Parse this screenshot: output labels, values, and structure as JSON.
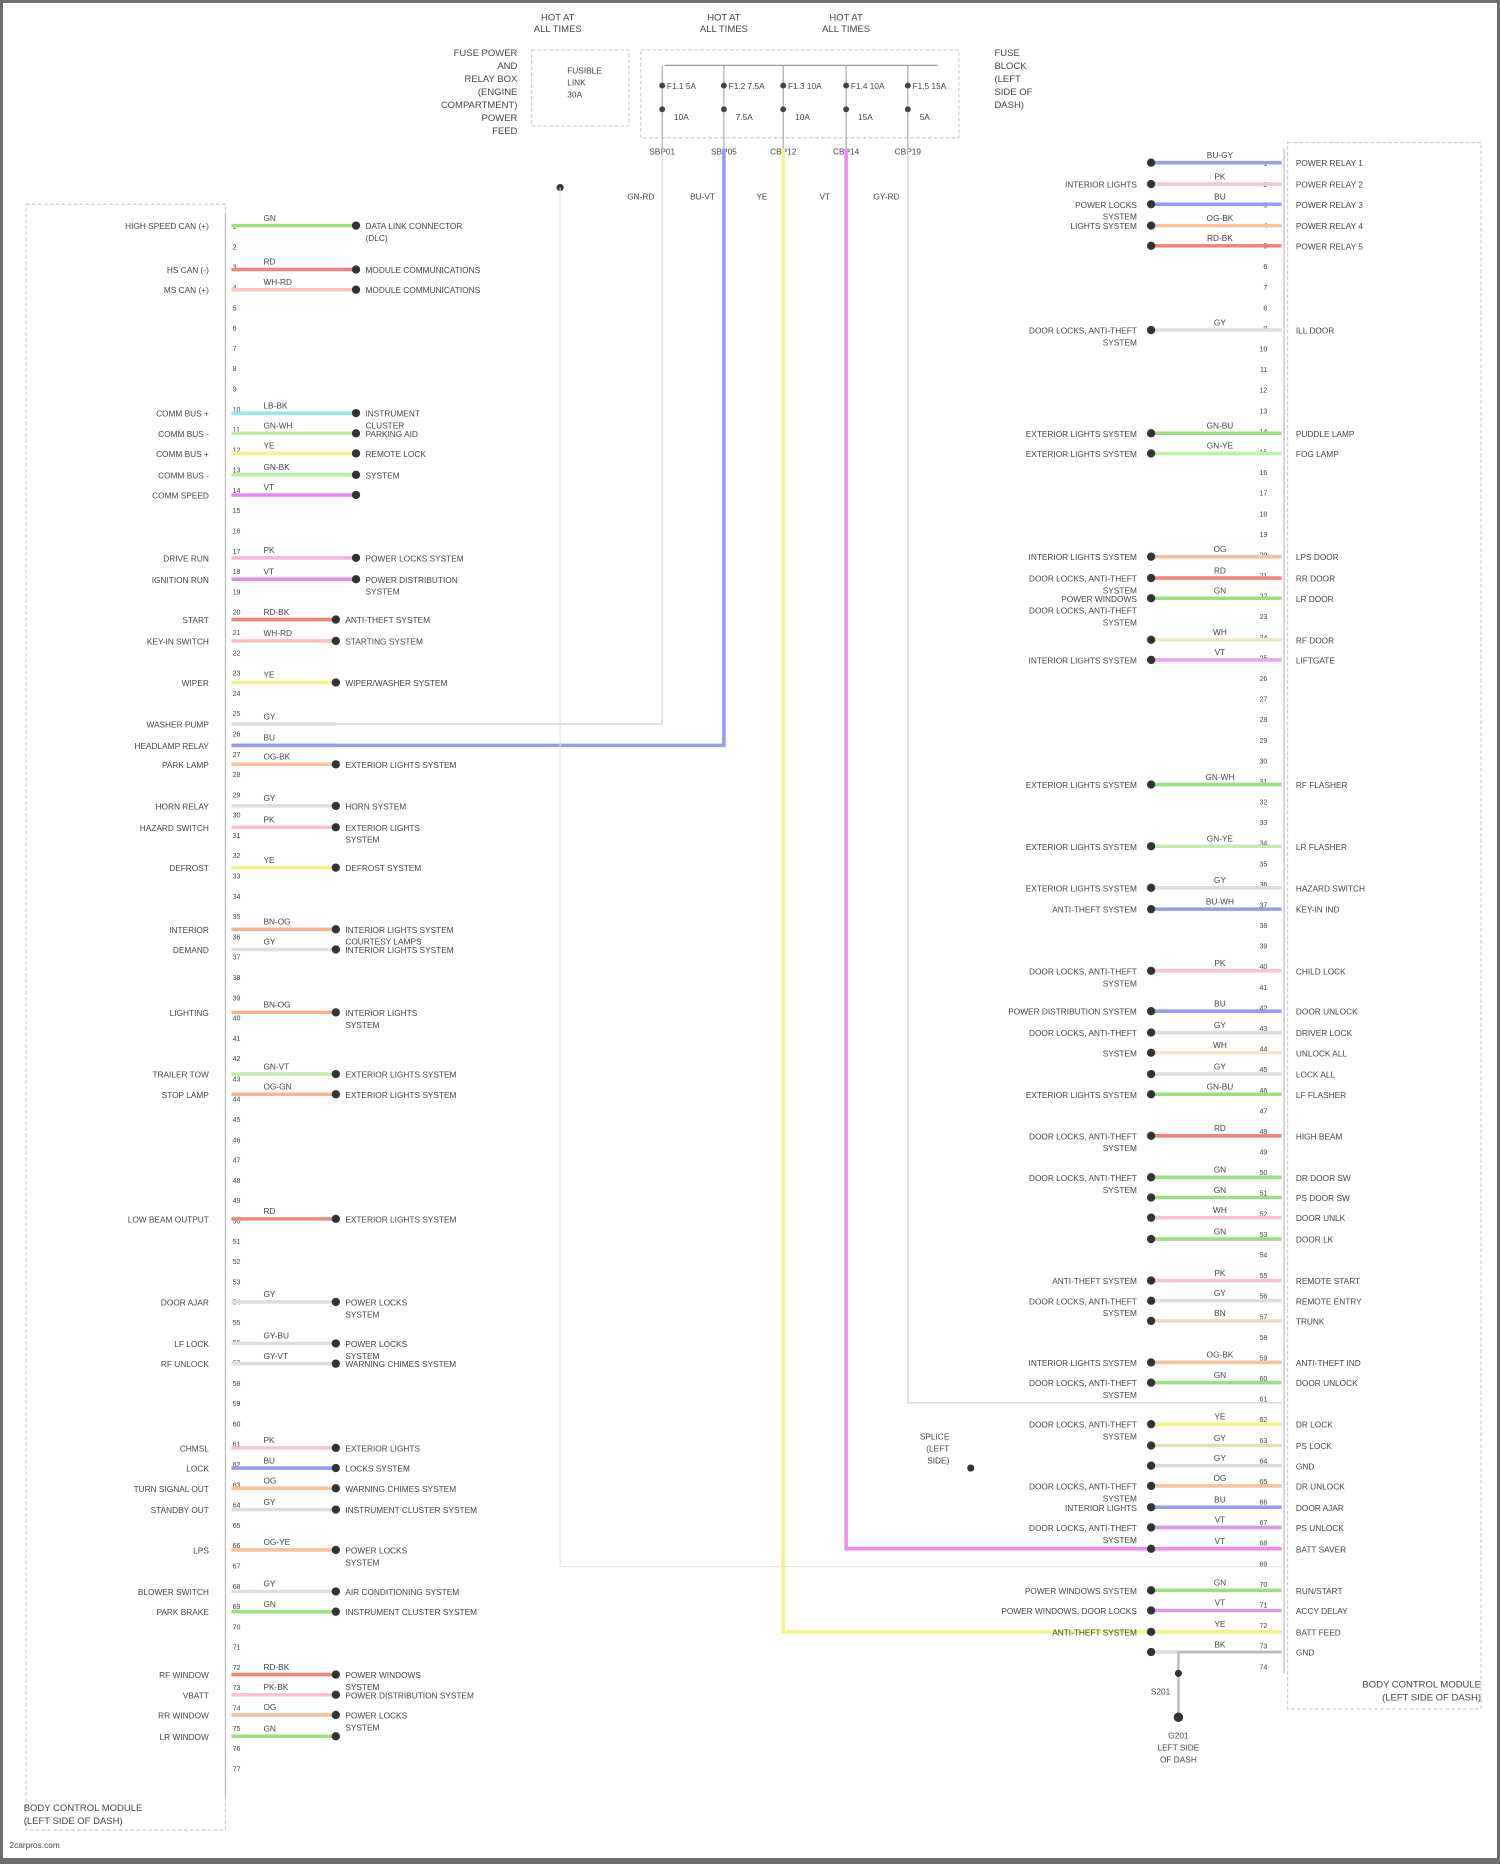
{
  "fuse_box": {
    "left_label": [
      "FUSE POWER",
      "AND",
      "RELAY BOX",
      "(ENGINE",
      "COMPARTMENT)",
      "POWER",
      "FEED"
    ],
    "right_label": [
      "FUSE",
      "BLOCK",
      "(LEFT",
      "SIDE OF",
      "DASH)"
    ],
    "hot_labels": [
      [
        "HOT AT",
        "ALL TIMES"
      ],
      [
        "HOT AT",
        "ALL TIMES"
      ],
      [
        "HOT AT",
        "ALL TIMES"
      ]
    ],
    "fuses": [
      "F1.1 5A",
      "F1.2 7.5A",
      "F1.3 10A",
      "F1.4 10A",
      "F1.5 15A"
    ],
    "fuse_amps": [
      "10A",
      "7.5A",
      "10A",
      "15A",
      "5A"
    ],
    "inline_fuse": [
      "FUSIBLE",
      "LINK",
      "30A"
    ],
    "wire_codes": [
      "SBP01",
      "SBP05",
      "CBP12",
      "CBP14",
      "CBP19"
    ],
    "wire_colors": [
      "GN-RD",
      "BU-VT",
      "YE",
      "VT",
      "GY-RD"
    ]
  },
  "left_module": {
    "title": [
      "BODY CONTROL MODULE",
      "(LEFT SIDE OF DASH)"
    ],
    "pin_count": 77,
    "wires": [
      {
        "pin": "1",
        "color": "GN",
        "hex": "#9be07f",
        "signal": "HIGH SPEED CAN (+)",
        "dest": [
          "DATA LINK CONNECTOR",
          "(DLC)"
        ]
      },
      {
        "pin": "3",
        "color": "RD",
        "hex": "#f4847a",
        "signal": "HS CAN (-)",
        "dest": [
          "MODULE COMMUNICATIONS"
        ]
      },
      {
        "pin": "4",
        "color": "WH-RD",
        "hex": "#f7c2c2",
        "signal": "MS CAN (+)",
        "dest": [
          "MODULE COMMUNICATIONS"
        ]
      },
      {
        "pin": "11",
        "color": "LB-BK",
        "hex": "#8fe8f2",
        "signal": "COMM BUS +",
        "dest": [
          "INSTRUMENT",
          "CLUSTER"
        ]
      },
      {
        "pin": "12",
        "color": "GN-WH",
        "hex": "#c5eca8",
        "signal": "COMM BUS -",
        "dest": [
          "PARKING AID"
        ]
      },
      {
        "pin": "13",
        "color": "YE",
        "hex": "#f3f38a",
        "signal": "COMM BUS +",
        "dest": [
          "REMOTE LOCK"
        ]
      },
      {
        "pin": "14",
        "color": "GN-BK",
        "hex": "#c5eca8",
        "signal": "COMM BUS -",
        "dest": [
          "SYSTEM"
        ]
      },
      {
        "pin": "15",
        "color": "VT",
        "hex": "#e58af0",
        "signal": "COMM SPEED",
        "dest": []
      },
      {
        "pin": "17",
        "color": "PK",
        "hex": "#f7b2d6",
        "signal": "DRIVE RUN",
        "dest": [
          "POWER LOCKS SYSTEM"
        ]
      },
      {
        "pin": "18",
        "color": "VT",
        "hex": "#e58af0",
        "signal": "IGNITION RUN",
        "dest": [
          "POWER DISTRIBUTION",
          "SYSTEM"
        ]
      },
      {
        "pin": "20",
        "color": "RD-BK",
        "hex": "#f4847a",
        "signal": "START",
        "dest": [
          "ANTI-THEFT SYSTEM"
        ]
      },
      {
        "pin": "21",
        "color": "WH-RD",
        "hex": "#f7c2c2",
        "signal": "KEY-IN SWITCH",
        "dest": [
          "STARTING SYSTEM"
        ]
      },
      {
        "pin": "23",
        "color": "YE",
        "hex": "#f3f38a",
        "signal": "WIPER",
        "dest": [
          "WIPER/WASHER SYSTEM"
        ]
      },
      {
        "pin": "25",
        "color": "GY",
        "hex": "#dddddd",
        "signal": "WASHER PUMP",
        "dest": []
      },
      {
        "pin": "26",
        "color": "BU",
        "hex": "#9a9af5",
        "signal": "HEADLAMP RELAY",
        "dest": []
      },
      {
        "pin": "27",
        "color": "OG-BK",
        "hex": "#f7c29a",
        "signal": "PARK LAMP",
        "dest": [
          "EXTERIOR LIGHTS SYSTEM"
        ]
      },
      {
        "pin": "29",
        "color": "GY",
        "hex": "#dddddd",
        "signal": "HORN RELAY",
        "dest": [
          "HORN SYSTEM"
        ]
      },
      {
        "pin": "30",
        "color": "PK",
        "hex": "#f7c2d6",
        "signal": "HAZARD SWITCH",
        "dest": [
          "EXTERIOR LIGHTS",
          "SYSTEM"
        ]
      },
      {
        "pin": "32",
        "color": "YE",
        "hex": "#f3f38a",
        "signal": "DEFROST",
        "dest": [
          "DEFROST SYSTEM"
        ]
      },
      {
        "pin": "35",
        "color": "BN-OG",
        "hex": "#f0b48e",
        "signal": "INTERIOR",
        "dest": [
          "INTERIOR LIGHTS SYSTEM",
          "COURTESY LAMPS"
        ]
      },
      {
        "pin": "36",
        "color": "GY",
        "hex": "#dddddd",
        "signal": "DEMAND",
        "dest": [
          "INTERIOR LIGHTS SYSTEM"
        ]
      },
      {
        "pin": "39",
        "color": "BN-OG",
        "hex": "#f0b48e",
        "signal": "LIGHTING",
        "dest": [
          "INTERIOR LIGHTS",
          "SYSTEM"
        ]
      },
      {
        "pin": "42",
        "color": "GN-VT",
        "hex": "#c5eca8",
        "signal": "TRAILER TOW",
        "dest": [
          "EXTERIOR LIGHTS SYSTEM"
        ]
      },
      {
        "pin": "43",
        "color": "OG-GN",
        "hex": "#f7b69a",
        "signal": "STOP LAMP",
        "dest": [
          "EXTERIOR LIGHTS SYSTEM"
        ]
      },
      {
        "pin": "49",
        "color": "RD",
        "hex": "#f4847a",
        "signal": "LOW BEAM OUTPUT",
        "dest": [
          "EXTERIOR LIGHTS SYSTEM"
        ]
      },
      {
        "pin": "53",
        "color": "GY",
        "hex": "#dddddd",
        "signal": "DOOR AJAR",
        "dest": [
          "POWER LOCKS",
          "SYSTEM"
        ]
      },
      {
        "pin": "55",
        "color": "GY-BU",
        "hex": "#dddddd",
        "signal": "LF LOCK",
        "dest": [
          "POWER LOCKS",
          "SYSTEM"
        ]
      },
      {
        "pin": "56",
        "color": "GY-VT",
        "hex": "#dddddd",
        "signal": "RF UNLOCK",
        "dest": [
          "WARNING CHIMES SYSTEM"
        ]
      },
      {
        "pin": "60",
        "color": "PK",
        "hex": "#f7c2d6",
        "signal": "CHMSL",
        "dest": [
          "EXTERIOR LIGHTS"
        ]
      },
      {
        "pin": "61",
        "color": "BU",
        "hex": "#9a9af5",
        "signal": "LOCK",
        "dest": [
          "LOCKS SYSTEM"
        ]
      },
      {
        "pin": "62",
        "color": "OG",
        "hex": "#f7c29a",
        "signal": "TURN SIGNAL OUT",
        "dest": [
          "WARNING CHIMES SYSTEM"
        ]
      },
      {
        "pin": "63",
        "color": "GY",
        "hex": "#dddddd",
        "signal": "STANDBY OUT",
        "dest": [
          "INSTRUMENT CLUSTER SYSTEM"
        ]
      },
      {
        "pin": "65",
        "color": "OG-YE",
        "hex": "#f7c29a",
        "signal": "LPS",
        "dest": [
          "POWER LOCKS",
          "SYSTEM"
        ]
      },
      {
        "pin": "67",
        "color": "GY",
        "hex": "#dddddd",
        "signal": "BLOWER SWITCH",
        "dest": [
          "AIR CONDITIONING SYSTEM"
        ]
      },
      {
        "pin": "68",
        "color": "GN",
        "hex": "#9be07f",
        "signal": "PARK BRAKE",
        "dest": [
          "INSTRUMENT CLUSTER SYSTEM"
        ]
      },
      {
        "pin": "71",
        "color": "RD-BK",
        "hex": "#f4847a",
        "signal": "RF WINDOW",
        "dest": [
          "POWER WINDOWS",
          "SYSTEM"
        ]
      },
      {
        "pin": "72",
        "color": "PK-BK",
        "hex": "#f7c2d6",
        "signal": "VBATT",
        "dest": [
          "POWER DISTRIBUTION SYSTEM"
        ]
      },
      {
        "pin": "73",
        "color": "OG",
        "hex": "#f7c29a",
        "signal": "RR WINDOW",
        "dest": [
          "POWER LOCKS",
          "SYSTEM"
        ]
      },
      {
        "pin": "74",
        "color": "GN",
        "hex": "#9be07f",
        "signal": "LR WINDOW",
        "dest": []
      }
    ]
  },
  "right_module": {
    "title": [
      "BODY CONTROL MODULE",
      "(LEFT SIDE OF DASH)"
    ],
    "pin_count": 74,
    "wires": [
      {
        "pin": "1",
        "color": "BU-GY",
        "hex": "#9a9af5",
        "signal": "POWER RELAY 1",
        "dest": []
      },
      {
        "pin": "2",
        "color": "PK",
        "hex": "#f7c2d6",
        "signal": "POWER RELAY 2",
        "dest": [
          "INTERIOR LIGHTS"
        ]
      },
      {
        "pin": "3",
        "color": "BU",
        "hex": "#9a9af5",
        "signal": "POWER RELAY 3",
        "dest": [
          "POWER LOCKS",
          "SYSTEM"
        ]
      },
      {
        "pin": "4",
        "color": "OG-BK",
        "hex": "#f7c29a",
        "signal": "POWER RELAY 4",
        "dest": [
          "LIGHTS SYSTEM"
        ]
      },
      {
        "pin": "5",
        "color": "RD-BK",
        "hex": "#f4847a",
        "signal": "POWER RELAY 5",
        "dest": []
      },
      {
        "pin": "9",
        "color": "GY",
        "hex": "#dddddd",
        "signal": "ILL DOOR",
        "dest": [
          "DOOR LOCKS, ANTI-THEFT",
          "SYSTEM"
        ]
      },
      {
        "pin": "14",
        "color": "GN-BU",
        "hex": "#9be07f",
        "signal": "PUDDLE LAMP",
        "dest": [
          "EXTERIOR LIGHTS SYSTEM"
        ]
      },
      {
        "pin": "15",
        "color": "GN-YE",
        "hex": "#c5eca8",
        "signal": "FOG LAMP",
        "dest": [
          "EXTERIOR LIGHTS SYSTEM"
        ]
      },
      {
        "pin": "20",
        "color": "OG",
        "hex": "#f7c29a",
        "signal": "LPS DOOR",
        "dest": [
          "INTERIOR LIGHTS SYSTEM"
        ]
      },
      {
        "pin": "21",
        "color": "RD",
        "hex": "#f4847a",
        "signal": "RR DOOR",
        "dest": [
          "DOOR LOCKS, ANTI-THEFT",
          "SYSTEM"
        ]
      },
      {
        "pin": "22",
        "color": "GN",
        "hex": "#9be07f",
        "signal": "LR DOOR",
        "dest": [
          "POWER WINDOWS",
          "DOOR LOCKS, ANTI-THEFT",
          "SYSTEM"
        ]
      },
      {
        "pin": "24",
        "color": "WH",
        "hex": "#f2e8c8",
        "signal": "RF DOOR",
        "dest": []
      },
      {
        "pin": "25",
        "color": "VT",
        "hex": "#e0a8f0",
        "signal": "LIFTGATE",
        "dest": [
          "INTERIOR LIGHTS SYSTEM"
        ]
      },
      {
        "pin": "31",
        "color": "GN-WH",
        "hex": "#9be07f",
        "signal": "RF FLASHER",
        "dest": [
          "EXTERIOR LIGHTS SYSTEM"
        ]
      },
      {
        "pin": "34",
        "color": "GN-YE",
        "hex": "#c5eca8",
        "signal": "LR FLASHER",
        "dest": [
          "EXTERIOR LIGHTS SYSTEM"
        ]
      },
      {
        "pin": "36",
        "color": "GY",
        "hex": "#dddddd",
        "signal": "HAZARD SWITCH",
        "dest": [
          "EXTERIOR LIGHTS SYSTEM"
        ]
      },
      {
        "pin": "37",
        "color": "BU-WH",
        "hex": "#9a9af5",
        "signal": "KEY-IN IND",
        "dest": [
          "ANTI-THEFT SYSTEM"
        ]
      },
      {
        "pin": "40",
        "color": "PK",
        "hex": "#f7c2d6",
        "signal": "CHILD LOCK",
        "dest": [
          "DOOR LOCKS, ANTI-THEFT",
          "SYSTEM"
        ]
      },
      {
        "pin": "42",
        "color": "BU",
        "hex": "#9a9af5",
        "signal": "DOOR UNLOCK",
        "dest": [
          "POWER DISTRIBUTION SYSTEM"
        ]
      },
      {
        "pin": "43",
        "color": "GY",
        "hex": "#dddddd",
        "signal": "DRIVER LOCK",
        "dest": [
          "DOOR LOCKS, ANTI-THEFT"
        ]
      },
      {
        "pin": "44",
        "color": "WH",
        "hex": "#f2e8c8",
        "signal": "UNLOCK ALL",
        "dest": [
          "SYSTEM"
        ]
      },
      {
        "pin": "45",
        "color": "GY",
        "hex": "#dddddd",
        "signal": "LOCK ALL",
        "dest": []
      },
      {
        "pin": "46",
        "color": "GN-BU",
        "hex": "#9be07f",
        "signal": "LF FLASHER",
        "dest": [
          "EXTERIOR LIGHTS SYSTEM"
        ]
      },
      {
        "pin": "48",
        "color": "RD",
        "hex": "#f4847a",
        "signal": "HIGH BEAM",
        "dest": [
          "DOOR LOCKS, ANTI-THEFT",
          "SYSTEM"
        ]
      },
      {
        "pin": "50",
        "color": "GN",
        "hex": "#9be07f",
        "signal": "DR DOOR SW",
        "dest": [
          "DOOR LOCKS, ANTI-THEFT",
          "SYSTEM"
        ]
      },
      {
        "pin": "51",
        "color": "GN",
        "hex": "#9be07f",
        "signal": "PS DOOR SW",
        "dest": []
      },
      {
        "pin": "52",
        "color": "WH",
        "hex": "#f7c2d6",
        "signal": "DOOR UNLK",
        "dest": []
      },
      {
        "pin": "53",
        "color": "GN",
        "hex": "#9be07f",
        "signal": "DOOR LK",
        "dest": []
      },
      {
        "pin": "55",
        "color": "PK",
        "hex": "#f7c2d6",
        "signal": "REMOTE START",
        "dest": [
          "ANTI-THEFT SYSTEM"
        ]
      },
      {
        "pin": "56",
        "color": "GY",
        "hex": "#dddddd",
        "signal": "REMOTE ENTRY",
        "dest": [
          "DOOR LOCKS, ANTI-THEFT",
          "SYSTEM"
        ]
      },
      {
        "pin": "57",
        "color": "BN",
        "hex": "#e8dcc0",
        "signal": "TRUNK",
        "dest": []
      },
      {
        "pin": "59",
        "color": "OG-BK",
        "hex": "#f7c29a",
        "signal": "ANTI-THEFT IND",
        "dest": [
          "INTERIOR LIGHTS SYSTEM"
        ]
      },
      {
        "pin": "60",
        "color": "GN",
        "hex": "#9be07f",
        "signal": "DOOR UNLOCK",
        "dest": [
          "DOOR LOCKS, ANTI-THEFT",
          "SYSTEM"
        ]
      },
      {
        "pin": "62",
        "color": "YE",
        "hex": "#f3f38a",
        "signal": "DR LOCK",
        "dest": [
          "DOOR LOCKS, ANTI-THEFT",
          "SYSTEM"
        ]
      },
      {
        "pin": "63",
        "color": "GY",
        "hex": "#e8dcc0",
        "signal": "PS LOCK",
        "dest": []
      },
      {
        "pin": "64",
        "color": "GY",
        "hex": "#dddddd",
        "signal": "GND",
        "dest": []
      },
      {
        "pin": "65",
        "color": "OG",
        "hex": "#f7c29a",
        "signal": "DR UNLOCK",
        "dest": [
          "DOOR LOCKS, ANTI-THEFT",
          "SYSTEM"
        ]
      },
      {
        "pin": "66",
        "color": "BU",
        "hex": "#9a9af5",
        "signal": "DOOR AJAR",
        "dest": [
          "INTERIOR LIGHTS"
        ]
      },
      {
        "pin": "67",
        "color": "VT",
        "hex": "#d59af0",
        "signal": "PS UNLOCK",
        "dest": [
          "DOOR LOCKS, ANTI-THEFT",
          "SYSTEM"
        ]
      },
      {
        "pin": "68",
        "color": "VT",
        "hex": "#f08af0",
        "signal": "BATT SAVER",
        "dest": []
      },
      {
        "pin": "70",
        "color": "GN",
        "hex": "#9be07f",
        "signal": "RUN/START",
        "dest": [
          "POWER WINDOWS SYSTEM"
        ]
      },
      {
        "pin": "71",
        "color": "VT",
        "hex": "#d59af0",
        "signal": "ACCY DELAY",
        "dest": [
          "POWER WINDOWS, DOOR LOCKS"
        ]
      },
      {
        "pin": "72",
        "color": "YE",
        "hex": "#f3f38a",
        "signal": "BATT FEED",
        "dest": [
          "ANTI-THEFT SYSTEM"
        ]
      },
      {
        "pin": "73",
        "color": "BK",
        "hex": "#dddddd",
        "signal": "GND",
        "dest": []
      }
    ],
    "splice": {
      "label": [
        "SPLICE",
        "(LEFT",
        "SIDE)"
      ],
      "code": "S201"
    },
    "ground": {
      "label": [
        "G201",
        "LEFT SIDE",
        "OF DASH"
      ],
      "code": "BK"
    }
  },
  "footer": {
    "watermark": "2carpros.com"
  },
  "colors": {
    "blue": "#9a9af5",
    "yellow": "#f3f38a",
    "pink": "#f08af0",
    "gray": "#cfcfcf",
    "frame": "#6e6e6e"
  }
}
